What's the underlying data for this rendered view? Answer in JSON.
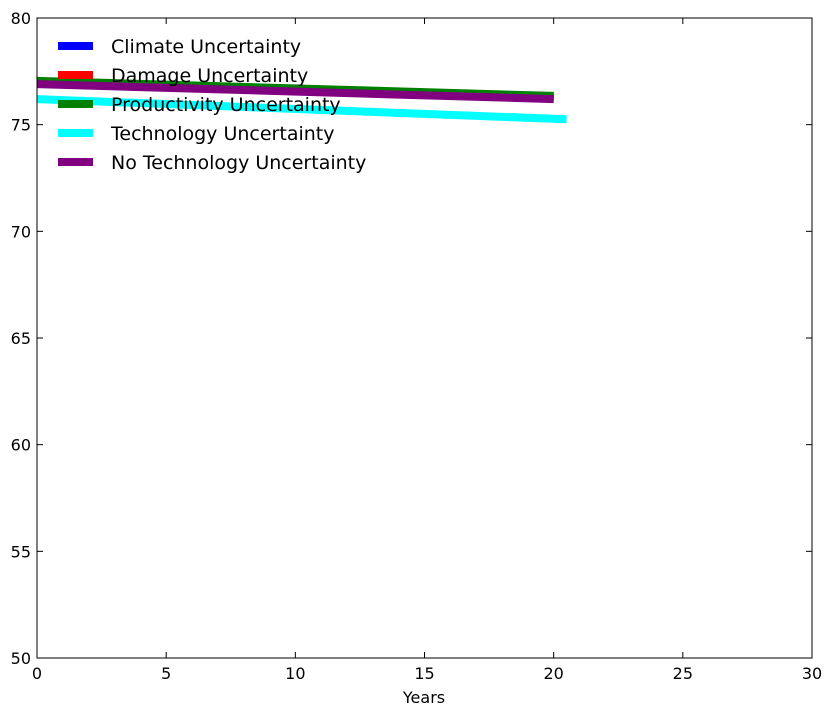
{
  "chart_data": {
    "type": "line",
    "title": "",
    "xlabel": "Years",
    "ylabel": "",
    "xlim": [
      0,
      30
    ],
    "ylim": [
      50,
      80
    ],
    "xticks": [
      0,
      5,
      10,
      15,
      20,
      25,
      30
    ],
    "yticks": [
      50,
      55,
      60,
      65,
      70,
      75,
      80
    ],
    "grid": false,
    "legend_position": "top-left",
    "series": [
      {
        "name": "Climate Uncertainty",
        "color": "#0000ff",
        "x": [
          0,
          20
        ],
        "y": [
          76.95,
          76.25
        ]
      },
      {
        "name": "Damage Uncertainty",
        "color": "#ff0000",
        "x": [
          0,
          20
        ],
        "y": [
          76.95,
          76.25
        ]
      },
      {
        "name": "Productivity Uncertainty",
        "color": "#008000",
        "x": [
          0,
          20
        ],
        "y": [
          77.05,
          76.35
        ]
      },
      {
        "name": "Technology Uncertainty",
        "color": "#00ffff",
        "x": [
          0,
          20.5
        ],
        "y": [
          76.2,
          75.25
        ]
      },
      {
        "name": "No Technology Uncertainty",
        "color": "#800080",
        "x": [
          0,
          20
        ],
        "y": [
          76.9,
          76.2
        ]
      }
    ]
  }
}
